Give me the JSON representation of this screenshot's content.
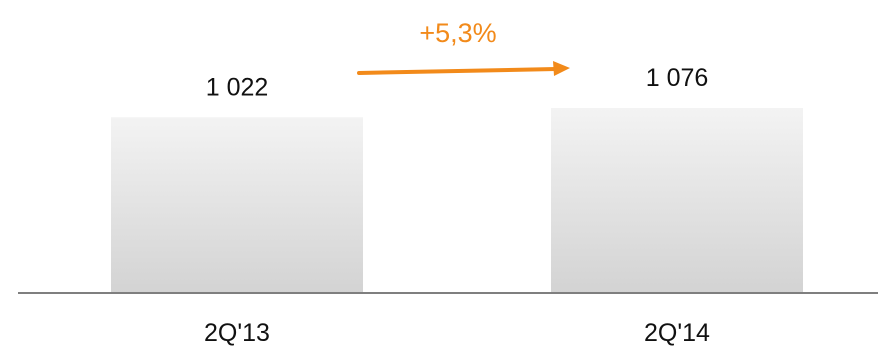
{
  "chart_data": {
    "type": "bar",
    "categories": [
      "2Q'13",
      "2Q'14"
    ],
    "values": [
      1022,
      1076
    ],
    "value_labels": [
      "1 022",
      "1 076"
    ],
    "ylim": [
      0,
      1076
    ],
    "grid": false,
    "annotation": {
      "text": "+5,3%",
      "from_category": "2Q'13",
      "to_category": "2Q'14"
    }
  },
  "colors": {
    "bar_top": "#f3f3f3",
    "bar_bottom": "#d3d3d3",
    "axis": "#7f7f7f",
    "accent": "#f28a1a",
    "text": "#111111"
  }
}
